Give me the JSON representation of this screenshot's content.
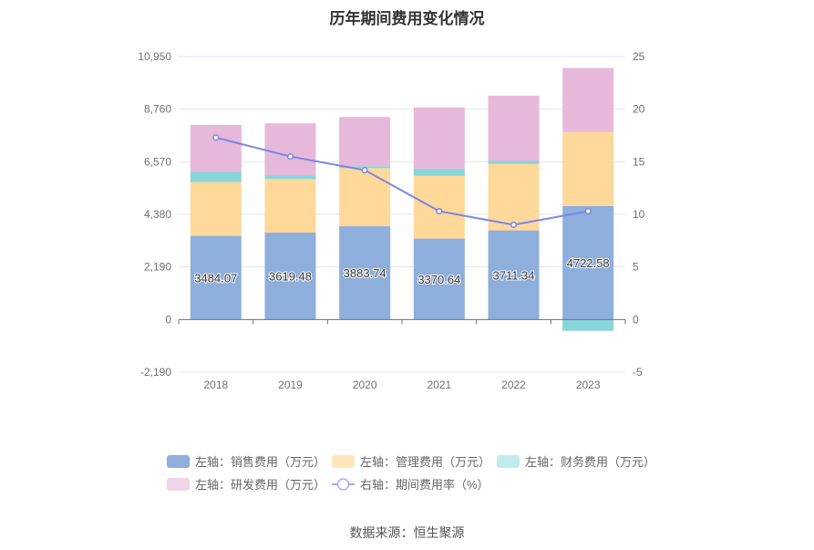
{
  "title": "历年期间费用变化情况",
  "source": "数据来源：恒生聚源",
  "chart_data": {
    "type": "bar",
    "stacked": true,
    "categories": [
      "2018",
      "2019",
      "2020",
      "2021",
      "2022",
      "2023"
    ],
    "left_axis": {
      "min": -2190,
      "max": 10950,
      "ticks": [
        -2190,
        0,
        2190,
        4380,
        6570,
        8760,
        10950
      ],
      "tick_labels": [
        "-2,190",
        "0",
        "2,190",
        "4,380",
        "6,570",
        "8,760",
        "10,950"
      ]
    },
    "right_axis": {
      "min": -5,
      "max": 25,
      "ticks": [
        -5,
        0,
        5,
        10,
        15,
        20,
        25
      ],
      "tick_labels": [
        "-5",
        "0",
        "5",
        "10",
        "15",
        "20",
        "25"
      ]
    },
    "series": [
      {
        "name": "左轴：销售费用（万元）",
        "type": "bar",
        "color": "#8eaedc",
        "values": [
          3484.07,
          3619.48,
          3883.74,
          3370.64,
          3711.34,
          4722.58
        ],
        "labels": [
          "3484.07",
          "3619.48",
          "3883.74",
          "3370.64",
          "3711.34",
          "4722.58"
        ]
      },
      {
        "name": "左轴：管理费用（万元）",
        "type": "bar",
        "color": "#ffd89a",
        "values": [
          2240,
          2230,
          2420,
          2610,
          2770,
          3080
        ]
      },
      {
        "name": "左轴：财务费用（万元）",
        "type": "bar",
        "color": "#87d5d8",
        "values": [
          420,
          160,
          80,
          300,
          120,
          -470
        ]
      },
      {
        "name": "左轴：研发费用（万元）",
        "type": "bar",
        "color": "#e6b9da",
        "values": [
          1960,
          2160,
          2050,
          2550,
          2720,
          2670
        ]
      },
      {
        "name": "右轴：期间费用率（%）",
        "type": "line",
        "color": "#7b85e6",
        "values": [
          17.3,
          15.5,
          14.2,
          10.3,
          9.0,
          10.3
        ]
      }
    ],
    "grid": true,
    "legend_position": "bottom"
  }
}
